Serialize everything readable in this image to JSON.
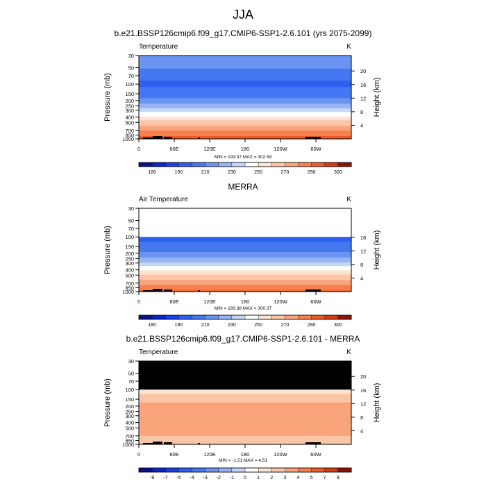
{
  "page": {
    "title": "JJA"
  },
  "colors": {
    "temperature_levels": [
      170,
      180,
      190,
      200,
      210,
      220,
      230,
      240,
      250,
      260,
      270,
      280,
      290,
      300,
      310
    ],
    "temperature_palette": [
      "#08108c",
      "#0a26c9",
      "#1a3fe8",
      "#2f5ff0",
      "#4578f2",
      "#6c95f3",
      "#97b4f5",
      "#c6d6f7",
      "#ffffff",
      "#fde3d3",
      "#fbc6a6",
      "#f9a47a",
      "#f6804f",
      "#f05a26",
      "#d93a0e",
      "#8a1406"
    ],
    "difference_levels": [
      -9,
      -7,
      -5,
      -4,
      -3,
      -2,
      -1,
      0,
      1,
      2,
      3,
      4,
      5,
      7,
      9
    ],
    "difference_palette": [
      "#08108c",
      "#0a26c9",
      "#1a3fe8",
      "#2f5ff0",
      "#4578f2",
      "#6c95f3",
      "#97b4f5",
      "#c6d6f7",
      "#ffffff",
      "#fde3d3",
      "#fbc6a6",
      "#f9a47a",
      "#f6804f",
      "#f05a26",
      "#d93a0e",
      "#8a1406"
    ],
    "missing": "#000000"
  },
  "chart_data": [
    {
      "type": "heatmap",
      "title": "b.e21.BSSP126cmip6.f09_g17.CMIP6-SSP1-2.6.101 (yrs 2075-2099)",
      "left_label": "Temperature",
      "right_label": "K",
      "ylabel": "Pressure (mb)",
      "y2label": "Height (km)",
      "xlabel": "",
      "x_ticks": [
        "0",
        "60E",
        "120E",
        "180",
        "120W",
        "60W"
      ],
      "y_ticks": [
        "30",
        "50",
        "70",
        "100",
        "150",
        "200",
        "250",
        "300",
        "400",
        "500",
        "700",
        "850",
        "1000"
      ],
      "y2_ticks": [
        "4",
        "8",
        "12",
        "16",
        "20"
      ],
      "ylim": [
        1000,
        30
      ],
      "stats": "MIN = 193.37  MAX = 302.59",
      "colorbar_labels": [
        "180",
        "190",
        "210",
        "230",
        "250",
        "270",
        "290",
        "300"
      ],
      "profile": {
        "pressure": [
          30,
          50,
          70,
          100,
          150,
          200,
          250,
          300,
          400,
          500,
          700,
          850,
          1000
        ],
        "value": [
          215,
          211,
          203,
          198,
          204,
          214,
          225,
          236,
          252,
          264,
          279,
          288,
          296
        ]
      }
    },
    {
      "type": "heatmap",
      "title": "MERRA",
      "left_label": "Air Temperature",
      "right_label": "K",
      "ylabel": "Pressure (mb)",
      "y2label": "Height (km)",
      "xlabel": "",
      "x_ticks": [
        "0",
        "60E",
        "120E",
        "180",
        "120W",
        "60W"
      ],
      "y_ticks": [
        "30",
        "50",
        "70",
        "100",
        "150",
        "200",
        "250",
        "300",
        "400",
        "500",
        "700",
        "850",
        "1000"
      ],
      "y2_ticks": [
        "4",
        "8",
        "12",
        "16"
      ],
      "ylim": [
        1000,
        30
      ],
      "data_top": 100,
      "stats": "MIN = 193.38  MAX = 300.37",
      "colorbar_labels": [
        "180",
        "190",
        "210",
        "230",
        "250",
        "270",
        "290",
        "300"
      ],
      "profile": {
        "pressure": [
          100,
          150,
          200,
          250,
          300,
          400,
          500,
          700,
          850,
          1000
        ],
        "value": [
          197,
          203,
          212,
          222,
          232,
          249,
          261,
          276,
          285,
          292
        ]
      }
    },
    {
      "type": "heatmap",
      "title": "b.e21.BSSP126cmip6.f09_g17.CMIP6-SSP1-2.6.101 - MERRA",
      "left_label": "Temperature",
      "right_label": "K",
      "ylabel": "Pressure (mb)",
      "y2label": "Height (km)",
      "xlabel": "",
      "x_ticks": [
        "0",
        "60E",
        "120E",
        "180",
        "120W",
        "60W"
      ],
      "y_ticks": [
        "30",
        "50",
        "70",
        "100",
        "150",
        "200",
        "250",
        "300",
        "400",
        "500",
        "700",
        "850",
        "1000"
      ],
      "y2_ticks": [
        "4",
        "8",
        "12",
        "16",
        "20"
      ],
      "ylim": [
        1000,
        30
      ],
      "data_top": 100,
      "stats": "MIN =  -1.51  MAX =  4.51",
      "colorbar_labels": [
        "-9",
        "-7",
        "-5",
        "-4",
        "-3",
        "-2",
        "-1",
        "0",
        "1",
        "2",
        "3",
        "4",
        "5",
        "7",
        "9"
      ],
      "profile": {
        "pressure": [
          100,
          150,
          200,
          250,
          300,
          400,
          500,
          700,
          850,
          1000
        ],
        "value": [
          1.5,
          2.6,
          3.4,
          3.6,
          3.7,
          3.6,
          3.4,
          3.0,
          2.6,
          2.2
        ]
      }
    }
  ]
}
